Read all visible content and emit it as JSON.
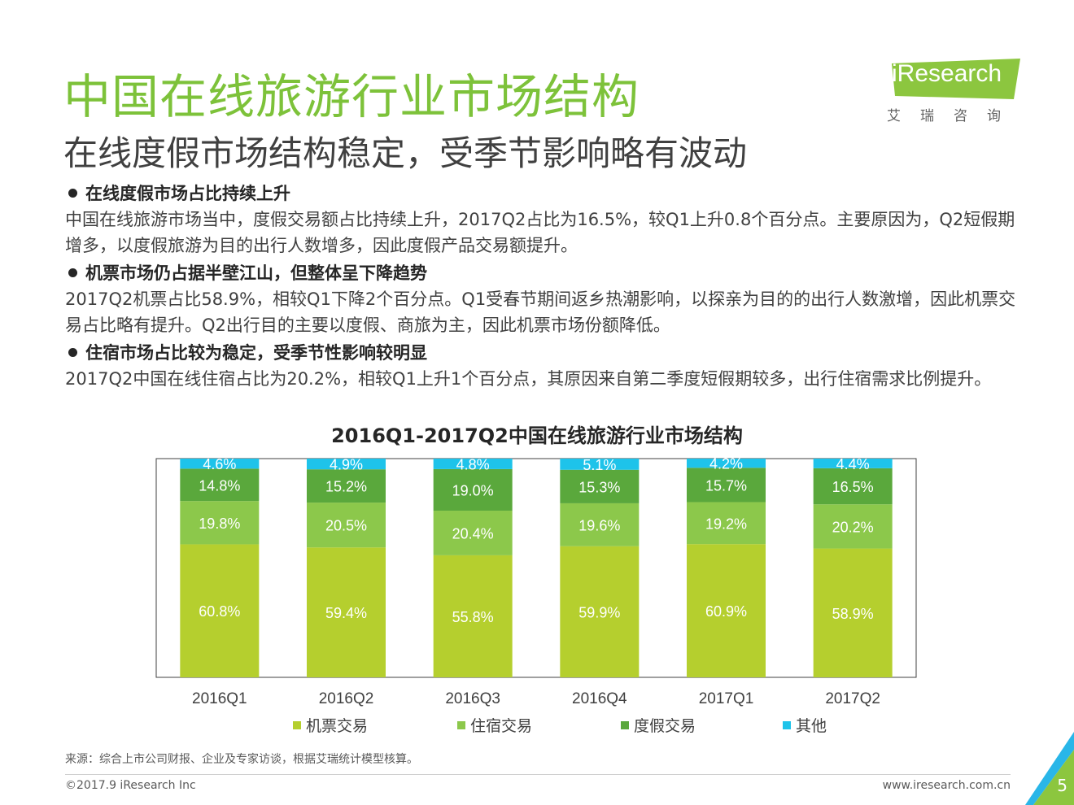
{
  "header": {
    "title": "中国在线旅游行业市场结构",
    "subtitle": "在线度假市场结构稳定，受季节影响略有波动",
    "logo_text": "iResearch",
    "logo_cn": "艾瑞咨询"
  },
  "bullets": [
    {
      "heading": "在线度假市场占比持续上升",
      "body": "中国在线旅游市场当中，度假交易额占比持续上升，2017Q2占比为16.5%，较Q1上升0.8个百分点。主要原因为，Q2短假期增多，以度假旅游为目的出行人数增多，因此度假产品交易额提升。"
    },
    {
      "heading": "机票市场仍占据半壁江山，但整体呈下降趋势",
      "body": "2017Q2机票占比58.9%，相较Q1下降2个百分点。Q1受春节期间返乡热潮影响，以探亲为目的的出行人数激增，因此机票交易占比略有提升。Q2出行目的主要以度假、商旅为主，因此机票市场份额降低。"
    },
    {
      "heading": "住宿市场占比较为稳定，受季节性影响较明显",
      "body": "2017Q2中国在线住宿占比为20.2%，相较Q1上升1个百分点，其原因来自第二季度短假期较多，出行住宿需求比例提升。"
    }
  ],
  "chart_data": {
    "type": "bar",
    "stacked": true,
    "title": "2016Q1-2017Q2中国在线旅游行业市场结构",
    "categories": [
      "2016Q1",
      "2016Q2",
      "2016Q3",
      "2016Q4",
      "2017Q1",
      "2017Q2"
    ],
    "series": [
      {
        "name": "机票交易",
        "values": [
          60.8,
          59.4,
          55.8,
          59.9,
          60.9,
          58.9
        ],
        "color": "#b5cf2e"
      },
      {
        "name": "住宿交易",
        "values": [
          19.8,
          20.5,
          20.4,
          19.6,
          19.2,
          20.2
        ],
        "color": "#8cc84b"
      },
      {
        "name": "度假交易",
        "values": [
          14.8,
          15.2,
          19.0,
          15.3,
          15.7,
          16.5
        ],
        "color": "#5aa83c"
      },
      {
        "name": "其他",
        "values": [
          4.6,
          4.9,
          4.8,
          5.1,
          4.2,
          4.4
        ],
        "color": "#1ec3ea"
      }
    ],
    "ylim": [
      0,
      100
    ],
    "unit": "%",
    "legend_position": "bottom",
    "grid": false
  },
  "footer": {
    "source": "来源：综合上市公司财报、企业及专家访谈，根据艾瑞统计模型核算。",
    "copyright": "©2017.9 iResearch Inc",
    "website": "www.iresearch.com.cn",
    "page_number": "5"
  },
  "colors": {
    "title_green": "#7dc23a",
    "logo_green": "#8cc63f",
    "corner_blue": "#29b6e8",
    "corner_green": "#8cc63f"
  }
}
